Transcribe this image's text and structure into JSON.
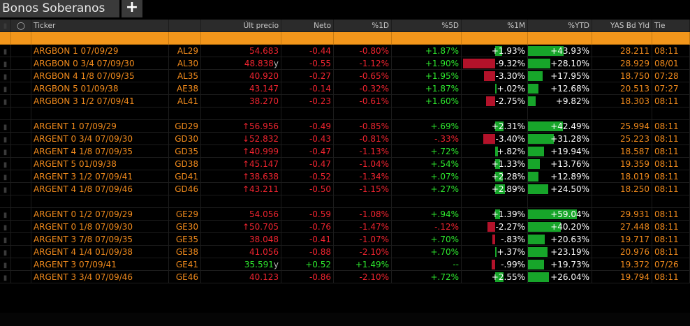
{
  "tab": {
    "title": "Bonos Soberanos",
    "add_label": "+"
  },
  "headers": [
    "Ticker",
    "Últ precio",
    "Neto",
    "%1D",
    "%5D",
    "%1M",
    "%YTD",
    "YAS Bd Yld",
    "Tie"
  ],
  "colors": {
    "orange": "#f2961b",
    "ticker": "#f08a1c",
    "red": "#f0242f",
    "green": "#2ee82e",
    "bar_red": "#b3122a",
    "bar_green": "#17a52a"
  },
  "rows": [
    {
      "type": "orange"
    },
    {
      "name": "ARGBON 1 07/09/29",
      "code": "AL29",
      "price": "54.683",
      "p_arrow": "",
      "p_suffix": "",
      "p_col": "red",
      "neto": "-0.44",
      "d1": "-0.80%",
      "d5": "+1.87%",
      "m1": "+1.93%",
      "m1_bar": 0.2,
      "m1_dir": "green",
      "ytd": "+43.93%",
      "ytd_bar": 0.55,
      "yld": "28.211",
      "time": "08:11"
    },
    {
      "name": "ARGBON 0 3/4 07/09/30",
      "code": "AL30",
      "price": "48.838",
      "p_arrow": "",
      "p_suffix": "y",
      "p_col": "red",
      "neto": "-0.55",
      "d1": "-1.12%",
      "d5": "+1.90%",
      "m1": "-9.32%",
      "m1_bar": 0.95,
      "m1_dir": "red",
      "ytd": "+28.10%",
      "ytd_bar": 0.35,
      "yld": "28.929",
      "time": "08/01"
    },
    {
      "name": "ARGBON 4 1/8 07/09/35",
      "code": "AL35",
      "price": "40.920",
      "p_arrow": "",
      "p_suffix": "",
      "p_col": "red",
      "neto": "-0.27",
      "d1": "-0.65%",
      "d5": "+1.95%",
      "m1": "-3.30%",
      "m1_bar": 0.34,
      "m1_dir": "red",
      "ytd": "+17.95%",
      "ytd_bar": 0.23,
      "yld": "18.750",
      "time": "07:28"
    },
    {
      "name": "ARGBON 5 01/09/38",
      "code": "AE38",
      "price": "43.147",
      "p_arrow": "",
      "p_suffix": "",
      "p_col": "red",
      "neto": "-0.14",
      "d1": "-0.32%",
      "d5": "+1.87%",
      "m1": "+.02%",
      "m1_bar": 0.02,
      "m1_dir": "green",
      "ytd": "+12.68%",
      "ytd_bar": 0.16,
      "yld": "20.513",
      "time": "07:27"
    },
    {
      "name": "ARGBON 3 1/2 07/09/41",
      "code": "AL41",
      "price": "38.270",
      "p_arrow": "",
      "p_suffix": "",
      "p_col": "red",
      "neto": "-0.23",
      "d1": "-0.61%",
      "d5": "+1.60%",
      "m1": "-2.75%",
      "m1_bar": 0.28,
      "m1_dir": "red",
      "ytd": "+9.82%",
      "ytd_bar": 0.12,
      "yld": "18.303",
      "time": "08:11"
    },
    {
      "type": "gap"
    },
    {
      "name": "ARGENT 1 07/09/29",
      "code": "GD29",
      "price": "56.956",
      "p_arrow": "↑",
      "p_suffix": "",
      "p_col": "red",
      "neto": "-0.49",
      "d1": "-0.85%",
      "d5": "+.69%",
      "m1": "+2.31%",
      "m1_bar": 0.24,
      "m1_dir": "green",
      "ytd": "+42.49%",
      "ytd_bar": 0.54,
      "yld": "25.994",
      "time": "08:11"
    },
    {
      "name": "ARGENT 0 3/4 07/09/30",
      "code": "GD30",
      "price": "52.832",
      "p_arrow": "↓",
      "p_suffix": "",
      "p_col": "red",
      "neto": "-0.43",
      "d1": "-0.81%",
      "d5": "-.33%",
      "m1": "-3.40%",
      "m1_bar": 0.35,
      "m1_dir": "red",
      "ytd": "+31.28%",
      "ytd_bar": 0.4,
      "yld": "25.223",
      "time": "08:11"
    },
    {
      "name": "ARGENT 4 1/8 07/09/35",
      "code": "GD35",
      "price": "40.999",
      "p_arrow": "↑",
      "p_suffix": "",
      "p_col": "red",
      "neto": "-0.47",
      "d1": "-1.13%",
      "d5": "+.72%",
      "m1": "+.82%",
      "m1_bar": 0.08,
      "m1_dir": "green",
      "ytd": "+19.94%",
      "ytd_bar": 0.25,
      "yld": "18.587",
      "time": "08:11"
    },
    {
      "name": "ARGENT 5 01/09/38",
      "code": "GD38",
      "price": "45.147",
      "p_arrow": "↑",
      "p_suffix": "",
      "p_col": "red",
      "neto": "-0.47",
      "d1": "-1.04%",
      "d5": "+.54%",
      "m1": "+1.33%",
      "m1_bar": 0.14,
      "m1_dir": "green",
      "ytd": "+13.76%",
      "ytd_bar": 0.18,
      "yld": "19.359",
      "time": "08:11"
    },
    {
      "name": "ARGENT 3 1/2 07/09/41",
      "code": "GD41",
      "price": "38.638",
      "p_arrow": "↑",
      "p_suffix": "",
      "p_col": "red",
      "neto": "-0.52",
      "d1": "-1.34%",
      "d5": "+.07%",
      "m1": "+2.28%",
      "m1_bar": 0.23,
      "m1_dir": "green",
      "ytd": "+12.89%",
      "ytd_bar": 0.16,
      "yld": "18.019",
      "time": "08:11"
    },
    {
      "name": "ARGENT 4 1/8 07/09/46",
      "code": "GD46",
      "price": "43.211",
      "p_arrow": "↑",
      "p_suffix": "",
      "p_col": "red",
      "neto": "-0.50",
      "d1": "-1.15%",
      "d5": "+.27%",
      "m1": "+2.89%",
      "m1_bar": 0.3,
      "m1_dir": "green",
      "ytd": "+24.50%",
      "ytd_bar": 0.31,
      "yld": "18.250",
      "time": "08:11"
    },
    {
      "type": "gap"
    },
    {
      "name": "ARGENT 0 1/2 07/09/29",
      "code": "GE29",
      "price": "54.056",
      "p_arrow": "",
      "p_suffix": "",
      "p_col": "red",
      "neto": "-0.59",
      "d1": "-1.08%",
      "d5": "+.94%",
      "m1": "+1.39%",
      "m1_bar": 0.14,
      "m1_dir": "green",
      "ytd": "+59.04%",
      "ytd_bar": 0.76,
      "yld": "29.931",
      "time": "08:11"
    },
    {
      "name": "ARGENT 0 1/8 07/09/30",
      "code": "GE30",
      "price": "50.705",
      "p_arrow": "↑",
      "p_suffix": "",
      "p_col": "red",
      "neto": "-0.76",
      "d1": "-1.47%",
      "d5": "-.12%",
      "m1": "-2.27%",
      "m1_bar": 0.23,
      "m1_dir": "red",
      "ytd": "+40.20%",
      "ytd_bar": 0.51,
      "yld": "27.448",
      "time": "08:11"
    },
    {
      "name": "ARGENT 3 7/8 07/09/35",
      "code": "GE35",
      "price": "38.048",
      "p_arrow": "",
      "p_suffix": "",
      "p_col": "red",
      "neto": "-0.41",
      "d1": "-1.07%",
      "d5": "+.70%",
      "m1": "-.83%",
      "m1_bar": 0.08,
      "m1_dir": "red",
      "ytd": "+20.63%",
      "ytd_bar": 0.26,
      "yld": "19.717",
      "time": "08:11"
    },
    {
      "name": "ARGENT 4 1/4 01/09/38",
      "code": "GE38",
      "price": "41.056",
      "p_arrow": "",
      "p_suffix": "",
      "p_col": "red",
      "neto": "-0.88",
      "d1": "-2.10%",
      "d5": "+.70%",
      "m1": "+.37%",
      "m1_bar": 0.04,
      "m1_dir": "green",
      "ytd": "+23.19%",
      "ytd_bar": 0.3,
      "yld": "20.976",
      "time": "08:11"
    },
    {
      "name": "ARGENT 3 07/09/41",
      "code": "GE41",
      "price": "35.591",
      "p_arrow": "",
      "p_suffix": "y",
      "p_col": "green",
      "neto": "+0.52",
      "d1": "+1.49%",
      "d5": "--",
      "m1": "-.99%",
      "m1_bar": 0.1,
      "m1_dir": "red",
      "ytd": "+19.73%",
      "ytd_bar": 0.25,
      "yld": "19.372",
      "time": "07/26"
    },
    {
      "name": "ARGENT 3 3/4 07/09/46",
      "code": "GE46",
      "price": "40.123",
      "p_arrow": "",
      "p_suffix": "",
      "p_col": "red",
      "neto": "-0.86",
      "d1": "-2.10%",
      "d5": "+.72%",
      "m1": "+2.55%",
      "m1_bar": 0.26,
      "m1_dir": "green",
      "ytd": "+26.04%",
      "ytd_bar": 0.33,
      "yld": "19.794",
      "time": "08:11"
    }
  ]
}
